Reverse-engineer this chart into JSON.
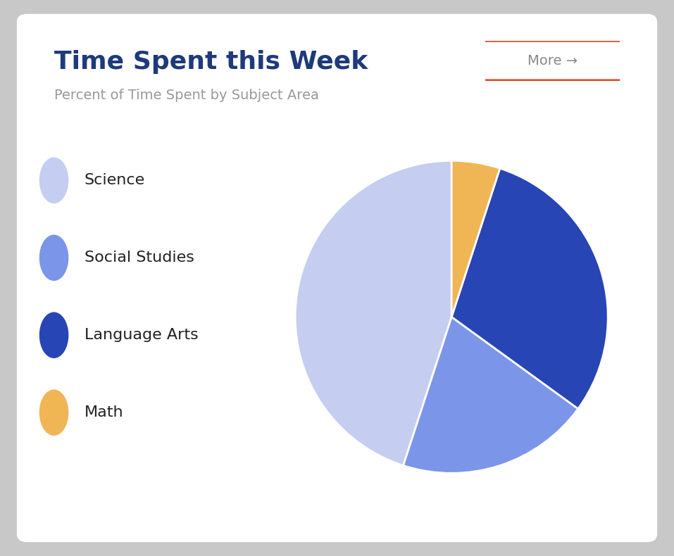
{
  "title": "Time Spent this Week",
  "subtitle": "Percent of Time Spent by Subject Area",
  "title_color": "#1e3a7a",
  "subtitle_color": "#999999",
  "more_button_text": "More →",
  "more_button_color": "#e04a2a",
  "outer_bg": "#c8c8c8",
  "card_bg": "#ffffff",
  "labels": [
    "Science",
    "Social Studies",
    "Language Arts",
    "Math"
  ],
  "values": [
    45,
    20,
    30,
    5
  ],
  "colors": [
    "#c5cef0",
    "#7b96e8",
    "#2845b5",
    "#f0b554"
  ],
  "legend_label_color": "#222222",
  "legend_label_fontsize": 16,
  "title_fontsize": 26,
  "subtitle_fontsize": 14,
  "startangle": 90
}
